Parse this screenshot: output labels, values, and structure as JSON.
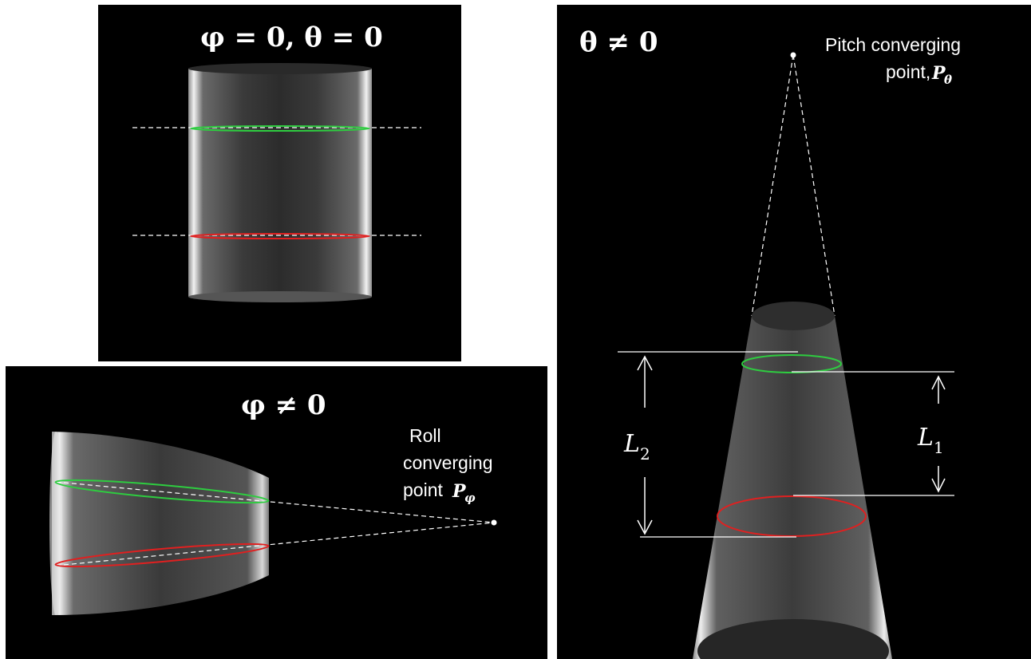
{
  "panel_top_left": {
    "title": "φ = 0, θ = 0"
  },
  "panel_bottom_left": {
    "title": "φ ≠ 0",
    "annotation_line1": "Roll",
    "annotation_line2": "converging",
    "annotation_line3": "point",
    "annotation_symbol": "P",
    "annotation_subscript": "φ"
  },
  "panel_right": {
    "title": "θ ≠ 0",
    "annotation_line1": "Pitch converging",
    "annotation_line2": "point,",
    "annotation_symbol": "P",
    "annotation_subscript": "θ",
    "length_label_1": "L",
    "length_label_1_sub": "1",
    "length_label_2": "L",
    "length_label_2_sub": "2"
  },
  "colors": {
    "background": "#000000",
    "ellipse_upper": "#2ecc40",
    "ellipse_lower": "#e02020",
    "guide_lines": "#ffffff"
  }
}
